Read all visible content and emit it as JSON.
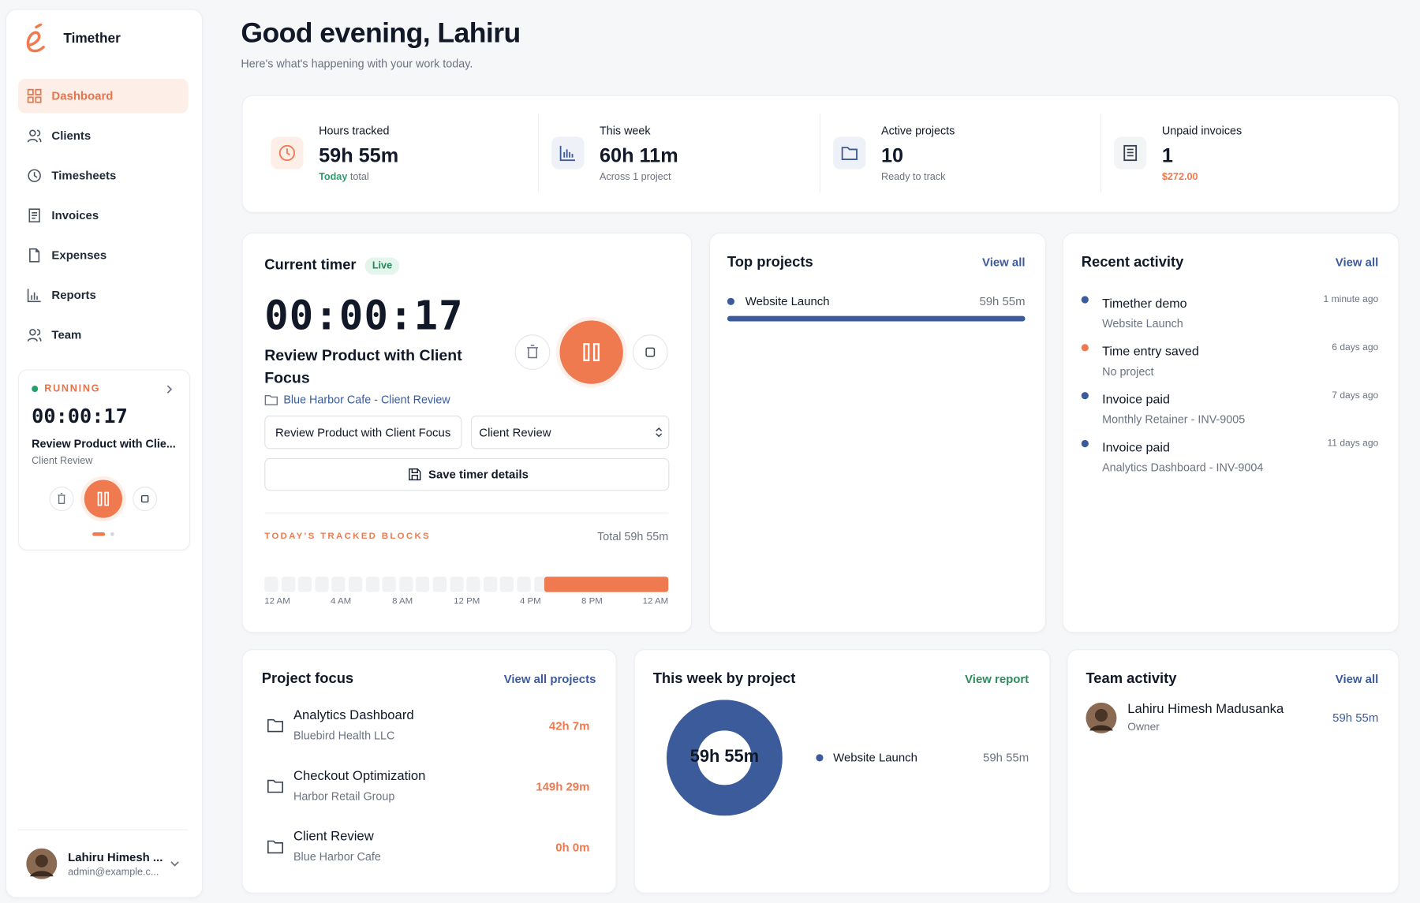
{
  "brand": "Timether",
  "nav": [
    "Dashboard",
    "Clients",
    "Timesheets",
    "Invoices",
    "Expenses",
    "Reports",
    "Team"
  ],
  "mini_timer": {
    "status": "RUNNING",
    "time": "00:00:17",
    "task": "Review Product with Clie...",
    "project": "Client Review"
  },
  "user": {
    "name": "Lahiru Himesh ...",
    "email": "admin@example.c..."
  },
  "header": {
    "title": "Good evening, Lahiru",
    "subtitle": "Here's what's happening with your work today."
  },
  "stats": [
    {
      "label": "Hours tracked",
      "value": "59h 55m",
      "note_em": "Today",
      "note": "total"
    },
    {
      "label": "This week",
      "value": "60h 11m",
      "note": "Across 1 project"
    },
    {
      "label": "Active projects",
      "value": "10",
      "note": "Ready to track"
    },
    {
      "label": "Unpaid invoices",
      "value": "1",
      "note": "$272.00"
    }
  ],
  "current_timer": {
    "title": "Current timer",
    "badge": "Live",
    "time": "00:00:17",
    "task": "Review Product with Client Focus",
    "project": "Blue Harbor Cafe - Client Review",
    "task_input": "Review Product with Client Focus",
    "project_select": "Client Review",
    "save": "Save timer details",
    "blocks_title": "TODAY'S TRACKED BLOCKS",
    "blocks_total": "Total 59h 55m",
    "axis": [
      "12 AM",
      "4 AM",
      "8 AM",
      "12 PM",
      "4 PM",
      "8 PM",
      "12 AM"
    ]
  },
  "top_projects": {
    "title": "Top projects",
    "link": "View all",
    "items": [
      {
        "name": "Website Launch",
        "time": "59h 55m"
      }
    ]
  },
  "recent_activity": {
    "title": "Recent activity",
    "link": "View all",
    "items": [
      {
        "title": "Timether demo",
        "sub": "Website Launch",
        "time": "1 minute ago"
      },
      {
        "title": "Time entry saved",
        "sub": "No project",
        "time": "6 days ago"
      },
      {
        "title": "Invoice paid",
        "sub": "Monthly Retainer - INV-9005",
        "time": "7 days ago"
      },
      {
        "title": "Invoice paid",
        "sub": "Analytics Dashboard - INV-9004",
        "time": "11 days ago"
      }
    ]
  },
  "project_focus": {
    "title": "Project focus",
    "link": "View all projects",
    "items": [
      {
        "name": "Analytics Dashboard",
        "client": "Bluebird Health LLC",
        "time": "42h 7m"
      },
      {
        "name": "Checkout Optimization",
        "client": "Harbor Retail Group",
        "time": "149h 29m"
      },
      {
        "name": "Client Review",
        "client": "Blue Harbor Cafe",
        "time": "0h 0m"
      }
    ]
  },
  "week_by_project": {
    "title": "This week by project",
    "link": "View report",
    "center": "59h 55m",
    "items": [
      {
        "name": "Website Launch",
        "time": "59h 55m"
      }
    ]
  },
  "team_activity": {
    "title": "Team activity",
    "link": "View all",
    "members": [
      {
        "name": "Lahiru Himesh Madusanka",
        "role": "Owner",
        "time": "59h 55m"
      }
    ]
  }
}
